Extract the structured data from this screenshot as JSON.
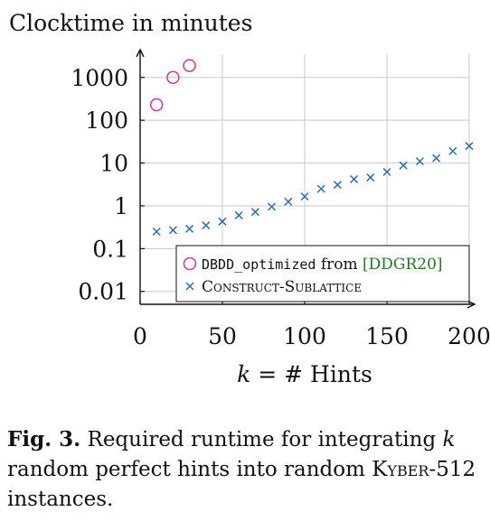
{
  "chart_data": {
    "type": "scatter",
    "title": "Clocktime in minutes",
    "xlabel": "k = # Hints",
    "ylabel": "",
    "xlim": [
      0,
      200
    ],
    "ylim": [
      0.005,
      3500
    ],
    "yscale": "log",
    "xticks": [
      0,
      50,
      100,
      150,
      200
    ],
    "xtick_labels": [
      "0",
      "50",
      "100",
      "150",
      "200"
    ],
    "yticks": [
      0.01,
      0.1,
      1,
      10,
      100,
      1000
    ],
    "ytick_labels": [
      "0.01",
      "0.1",
      "1",
      "10",
      "100",
      "1000"
    ],
    "grid": true,
    "legend_position": "bottom-right",
    "series": [
      {
        "name": "DBDD_optimized from [DDGR20]",
        "name_code": "DBDD_optimized",
        "name_text": "from",
        "name_cite": "[DDGR20]",
        "marker": "circle",
        "color": "#d0359f",
        "x": [
          10,
          20,
          30
        ],
        "y": [
          230,
          1000,
          1900
        ]
      },
      {
        "name": "Construct-Sublattice",
        "marker": "x",
        "color": "#2a6fb3",
        "x": [
          10,
          20,
          30,
          40,
          50,
          60,
          70,
          80,
          90,
          100,
          110,
          120,
          130,
          140,
          150,
          160,
          170,
          180,
          190,
          200
        ],
        "y": [
          0.25,
          0.27,
          0.29,
          0.35,
          0.43,
          0.6,
          0.72,
          0.95,
          1.25,
          1.65,
          2.5,
          3.1,
          4.2,
          4.6,
          6.2,
          8.8,
          11,
          13,
          19,
          25
        ]
      }
    ]
  },
  "caption": {
    "fig_label": "Fig. 3.",
    "text_1": "Required runtime for integrating ",
    "var": "k",
    "text_2": " random perfect hints into random ",
    "kyber": "Kyber",
    "text_3": "-512 instances."
  }
}
